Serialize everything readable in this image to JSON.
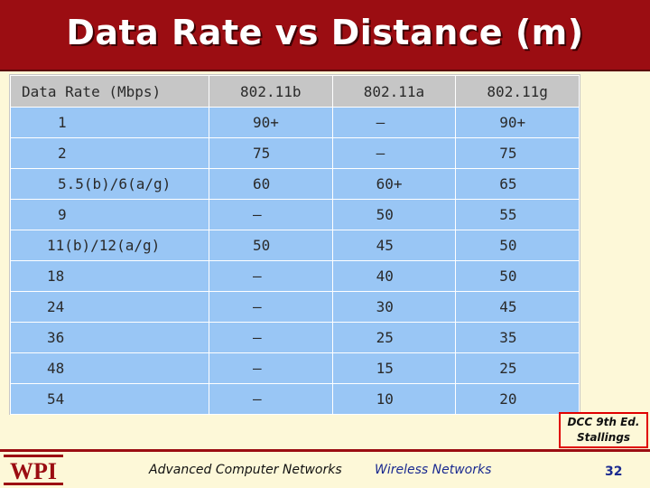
{
  "slide": {
    "title": "Data Rate vs Distance (m)"
  },
  "table": {
    "headers": [
      "Data Rate (Mbps)",
      "802.11b",
      "802.11a",
      "802.11g"
    ],
    "rows": [
      [
        "1",
        "90+",
        "—",
        "90+"
      ],
      [
        "2",
        "75",
        "—",
        "75"
      ],
      [
        "5.5(b)/6(a/g)",
        "60",
        "60+",
        "65"
      ],
      [
        "9",
        "—",
        "50",
        "55"
      ],
      [
        "11(b)/12(a/g)",
        "50",
        "45",
        "50"
      ],
      [
        "18",
        "—",
        "40",
        "50"
      ],
      [
        "24",
        "—",
        "30",
        "45"
      ],
      [
        "36",
        "—",
        "25",
        "35"
      ],
      [
        "48",
        "—",
        "15",
        "25"
      ],
      [
        "54",
        "—",
        "10",
        "20"
      ]
    ]
  },
  "citation": {
    "line1": "DCC 9th Ed.",
    "line2": "Stallings"
  },
  "footer": {
    "logo_text": "WPI",
    "course": "Advanced Computer Networks",
    "topic": "Wireless Networks",
    "page": "32"
  },
  "colors": {
    "title_bar": "#9b0d12",
    "header_cell": "#c6c6c6",
    "data_cell": "#99c6f5",
    "background": "#fdf8d8"
  }
}
